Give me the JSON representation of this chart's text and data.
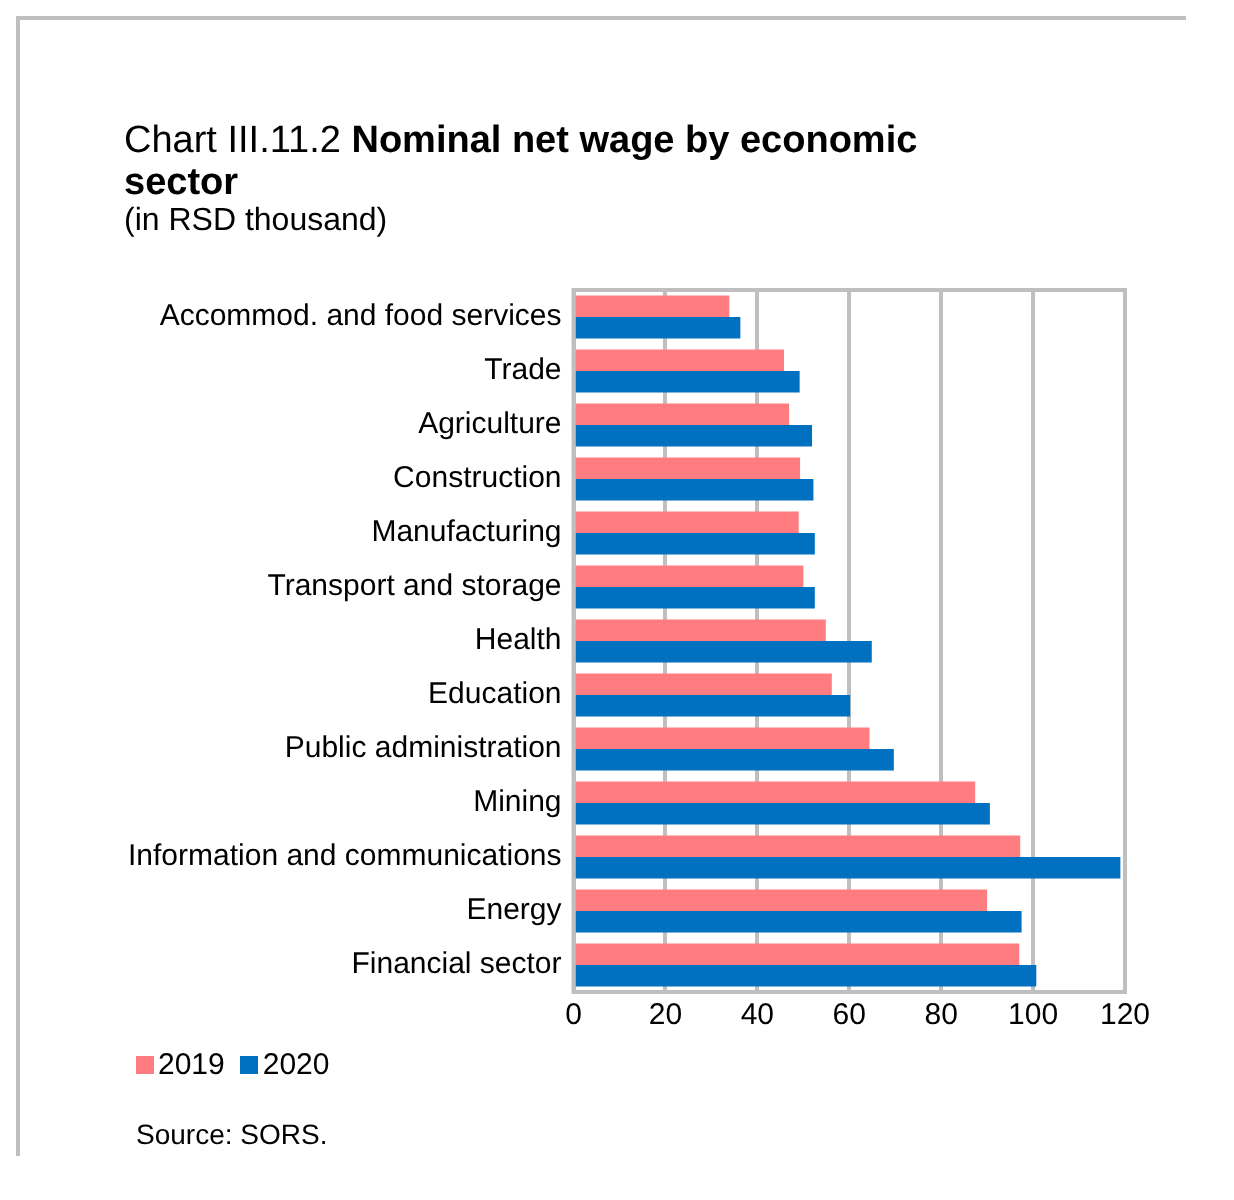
{
  "chart_data": {
    "type": "bar",
    "orientation": "horizontal",
    "title": "Chart III.11.2 Nominal net wage by economic sector",
    "subtitle": "(in RSD thousand)",
    "categories": [
      "Accommod. and food services",
      "Trade",
      "Agriculture",
      "Construction",
      "Manufacturing",
      "Transport and storage",
      "Health",
      "Education",
      "Public administration",
      "Mining",
      "Information and communications",
      "Energy",
      "Financial sector"
    ],
    "series": [
      {
        "name": "2019",
        "color": "#ff7c80",
        "values": [
          33.9,
          45.8,
          46.9,
          49.3,
          49.0,
          50.0,
          54.9,
          56.2,
          64.4,
          87.4,
          97.2,
          90.0,
          97.0
        ]
      },
      {
        "name": "2020",
        "color": "#0070c0",
        "values": [
          36.3,
          49.2,
          51.9,
          52.2,
          52.5,
          52.5,
          64.9,
          60.2,
          69.7,
          90.6,
          119.0,
          97.5,
          100.7
        ]
      }
    ],
    "xlim": [
      0,
      120
    ],
    "xticks": [
      0,
      20,
      40,
      60,
      80,
      100,
      120
    ],
    "grid": "x",
    "legend": "bottom left",
    "annotations": [
      "Source: SORS."
    ]
  }
}
